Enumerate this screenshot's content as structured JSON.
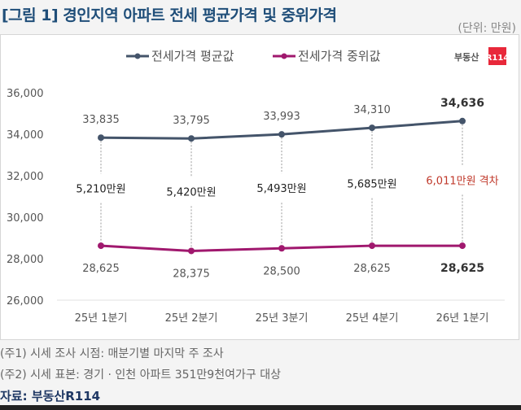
{
  "title": "[그림 1] 경인지역 아파트 전세 평균가격 및 중위가격",
  "unit": "(단위: 만원)",
  "logo": {
    "text": "부동산",
    "badge": "R114"
  },
  "notes": [
    "(주1) 시세 조사 시점: 매분기별 마지막 주 조사",
    "(주2) 시세 표본: 경기 · 인천 아파트 351만9천여가구 대상"
  ],
  "source": "자료: 부동산R114",
  "chart_data": {
    "type": "line",
    "categories": [
      "25년 1분기",
      "25년 2분기",
      "25년 3분기",
      "25년 4분기",
      "26년 1분기"
    ],
    "series": [
      {
        "name": "전세가격 평균값",
        "values": [
          33835,
          33795,
          33993,
          34310,
          34636
        ],
        "labels": [
          "33,835",
          "33,795",
          "33,993",
          "34,310",
          "34,636"
        ],
        "color": "#44546a"
      },
      {
        "name": "전세가격 중위값",
        "values": [
          28625,
          28375,
          28500,
          28625,
          28625
        ],
        "labels": [
          "28,625",
          "28,375",
          "28,500",
          "28,625",
          "28,625"
        ],
        "color": "#a0186e"
      }
    ],
    "gap_labels": [
      "5,210만원",
      "5,420만원",
      "5,493만원",
      "5,685만원",
      "6,011만원 격차"
    ],
    "gap_highlight_color": "#c0392b",
    "ylim": [
      26000,
      36000
    ],
    "yticks": [
      "26,000",
      "28,000",
      "30,000",
      "32,000",
      "34,000",
      "36,000"
    ],
    "legend": "top",
    "grid": false
  }
}
